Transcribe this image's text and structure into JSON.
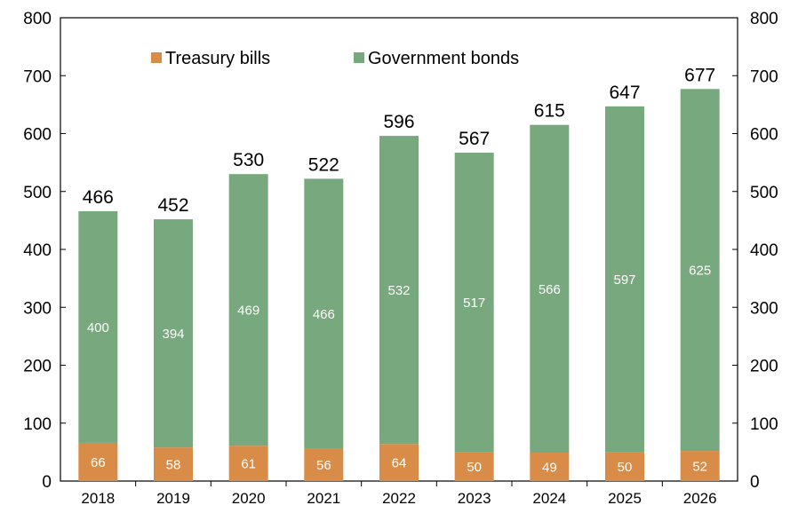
{
  "chart_data": {
    "type": "bar",
    "stacked": true,
    "categories": [
      "2018",
      "2019",
      "2020",
      "2021",
      "2022",
      "2023",
      "2024",
      "2025",
      "2026"
    ],
    "series": [
      {
        "name": "Treasury bills",
        "values": [
          66,
          58,
          61,
          56,
          64,
          50,
          49,
          50,
          52
        ],
        "color": "#D98C47"
      },
      {
        "name": "Government bonds",
        "values": [
          400,
          394,
          469,
          466,
          532,
          517,
          566,
          597,
          625
        ],
        "color": "#78A87D"
      }
    ],
    "totals": [
      466,
      452,
      530,
      522,
      596,
      567,
      615,
      647,
      677
    ],
    "ylim": [
      0,
      800
    ],
    "yticks": [
      0,
      100,
      200,
      300,
      400,
      500,
      600,
      700,
      800
    ],
    "y_axis_both_sides": true,
    "grid": false,
    "legend": "top, inside plot"
  }
}
